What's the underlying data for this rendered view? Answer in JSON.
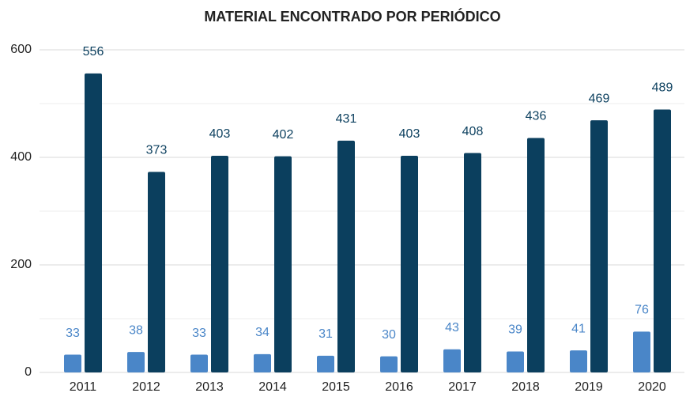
{
  "chart_data": {
    "type": "bar",
    "title": "MATERIAL ENCONTRADO POR PERIÓDICO",
    "categories": [
      "2011",
      "2012",
      "2013",
      "2014",
      "2015",
      "2016",
      "2017",
      "2018",
      "2019",
      "2020"
    ],
    "series": [
      {
        "color": "#4a86c8",
        "values": [
          33,
          38,
          33,
          34,
          31,
          30,
          43,
          39,
          41,
          76
        ]
      },
      {
        "color": "#0b3f5e",
        "values": [
          556,
          373,
          403,
          402,
          431,
          403,
          408,
          436,
          469,
          489
        ]
      }
    ],
    "ylim": [
      0,
      600
    ],
    "yticks": [
      0,
      200,
      400,
      600
    ],
    "minor_yticks": [
      100,
      300,
      500
    ],
    "grid": true,
    "data_labels": true
  }
}
